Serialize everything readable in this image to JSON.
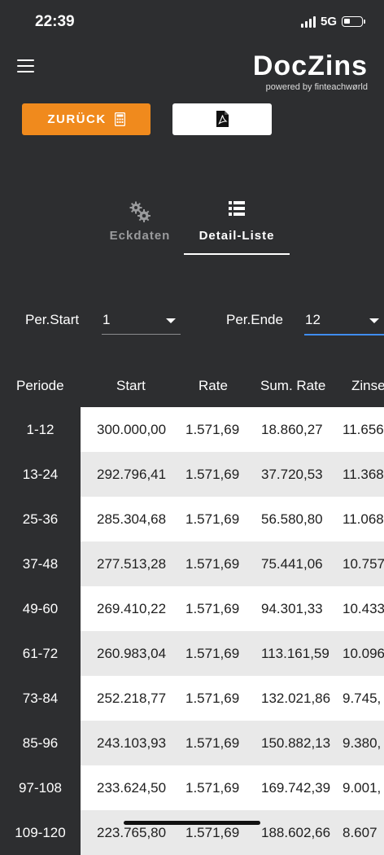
{
  "status_bar": {
    "time": "22:39",
    "network": "5G",
    "battery_level": 0.35
  },
  "header": {
    "logo_text_left": "Doc",
    "logo_text_z": "Z",
    "logo_text_right": "ins",
    "logo_sub": "powered by finteachwørld"
  },
  "toolbar": {
    "back_label": "ZURÜCK"
  },
  "tabs": [
    {
      "label": "Eckdaten",
      "active": false
    },
    {
      "label": "Detail-Liste",
      "active": true
    }
  ],
  "filters": {
    "start_label": "Per.Start",
    "start_value": "1",
    "end_label": "Per.Ende",
    "end_value": "12"
  },
  "table": {
    "columns": [
      "Periode",
      "Start",
      "Rate",
      "Sum. Rate",
      "Zinsen"
    ],
    "rows": [
      {
        "period": "1-12",
        "start": "300.000,00",
        "rate": "1.571,69",
        "sum_rate": "18.860,27",
        "zinsen": "11.656"
      },
      {
        "period": "13-24",
        "start": "292.796,41",
        "rate": "1.571,69",
        "sum_rate": "37.720,53",
        "zinsen": "11.368"
      },
      {
        "period": "25-36",
        "start": "285.304,68",
        "rate": "1.571,69",
        "sum_rate": "56.580,80",
        "zinsen": "11.068"
      },
      {
        "period": "37-48",
        "start": "277.513,28",
        "rate": "1.571,69",
        "sum_rate": "75.441,06",
        "zinsen": "10.757"
      },
      {
        "period": "49-60",
        "start": "269.410,22",
        "rate": "1.571,69",
        "sum_rate": "94.301,33",
        "zinsen": "10.433"
      },
      {
        "period": "61-72",
        "start": "260.983,04",
        "rate": "1.571,69",
        "sum_rate": "113.161,59",
        "zinsen": "10.096"
      },
      {
        "period": "73-84",
        "start": "252.218,77",
        "rate": "1.571,69",
        "sum_rate": "132.021,86",
        "zinsen": "9.745,"
      },
      {
        "period": "85-96",
        "start": "243.103,93",
        "rate": "1.571,69",
        "sum_rate": "150.882,13",
        "zinsen": "9.380,"
      },
      {
        "period": "97-108",
        "start": "233.624,50",
        "rate": "1.571,69",
        "sum_rate": "169.742,39",
        "zinsen": "9.001,"
      },
      {
        "period": "109-120",
        "start": "223.765,80",
        "rate": "1.571,69",
        "sum_rate": "188.602,66",
        "zinsen": "8.607"
      }
    ]
  },
  "colors": {
    "background": "#2d2e30",
    "accent": "#f08a1d",
    "select_active": "#3f8df0"
  }
}
